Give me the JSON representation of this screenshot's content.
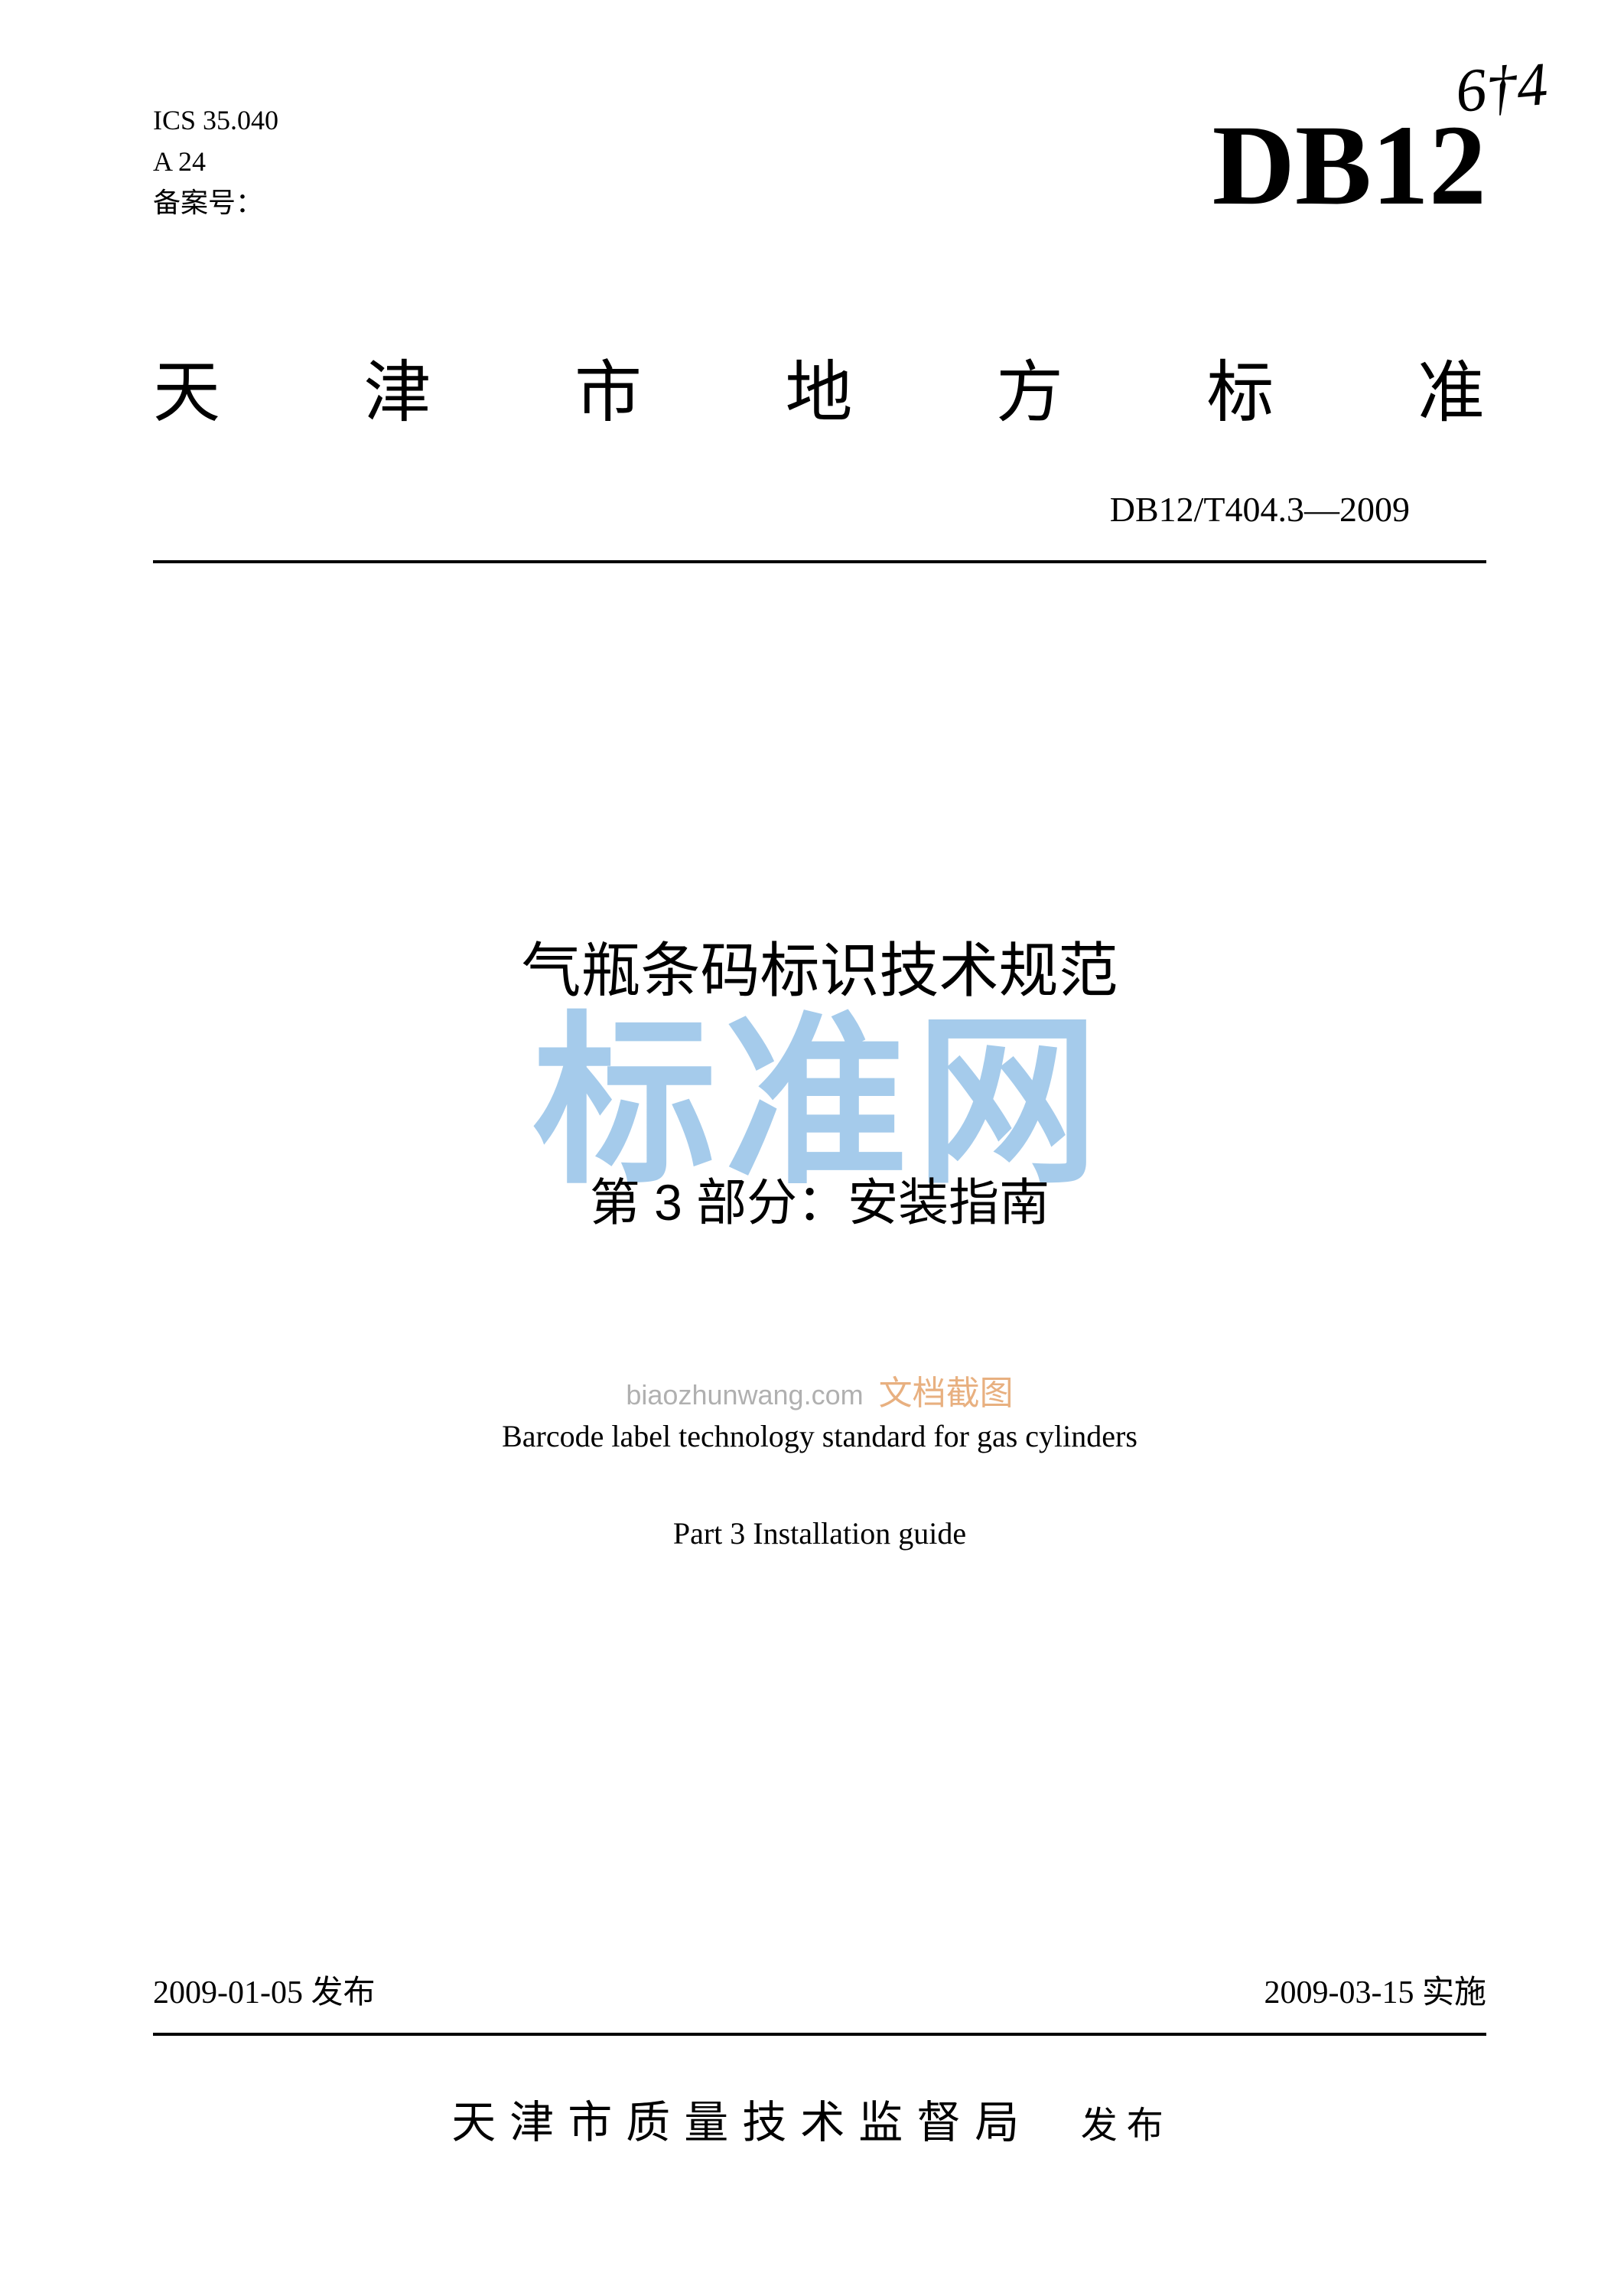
{
  "meta": {
    "ics": "ICS 35.040",
    "classification": "A 24",
    "filing_label": "备案号：",
    "handwritten": "6†4"
  },
  "header": {
    "standard_code": "DB12",
    "region_title_chars": [
      "天",
      "津",
      "市",
      "地",
      "方",
      "标",
      "准"
    ],
    "doc_number": "DB12/T404.3—2009"
  },
  "title": {
    "title_cn": "气瓶条码标识技术规范",
    "subtitle_cn": "第 3 部分：安装指南",
    "title_en": "Barcode label technology standard for gas cylinders",
    "subtitle_en": "Part 3    Installation guide"
  },
  "watermark": {
    "large": "标准网",
    "small_en": "biaozhunwang.com",
    "small_cn": "文档截图"
  },
  "dates": {
    "issue": "2009-01-05 发布",
    "effective": "2009-03-15 实施"
  },
  "publisher": {
    "org": "天津市质量技术监督局",
    "action": "发布"
  },
  "colors": {
    "text": "#000000",
    "background": "#ffffff",
    "watermark_blue": "#96c3e8",
    "watermark_orange": "#e8b080",
    "watermark_gray": "#b0b0b0"
  },
  "typography": {
    "standard_code_fontsize": 150,
    "region_title_fontsize": 88,
    "title_cn_fontsize": 78,
    "subtitle_cn_fontsize": 66,
    "title_en_fontsize": 40,
    "meta_fontsize": 36,
    "doc_number_fontsize": 46,
    "date_fontsize": 42,
    "publisher_fontsize": 58
  }
}
